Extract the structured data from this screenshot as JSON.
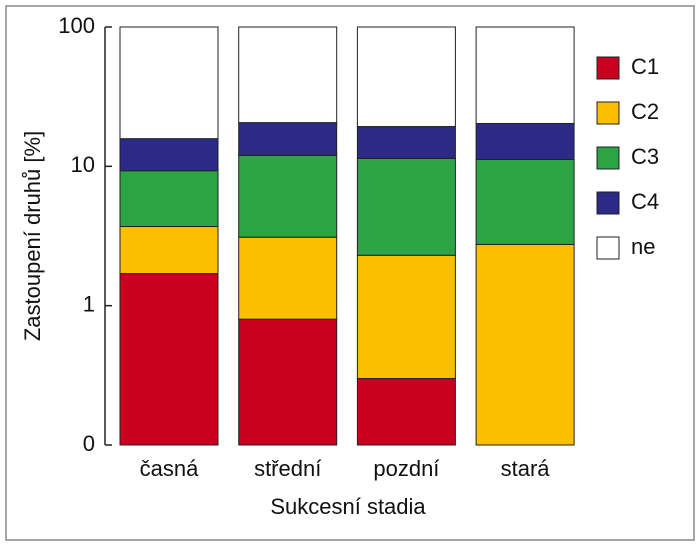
{
  "chart_data": {
    "type": "bar",
    "stacked": true,
    "log_scale": true,
    "xlabel": "Sukcesní stadia",
    "ylabel": "Zastoupení druhů [%]",
    "categories": [
      "časná",
      "střední",
      "pozdní",
      "stará"
    ],
    "series": [
      {
        "name": "C1",
        "color": "#c8001e",
        "values": [
          1.7,
          0.8,
          0.3,
          0
        ]
      },
      {
        "name": "C2",
        "color": "#fbbf00",
        "values": [
          2.0,
          2.3,
          2.0,
          2.75
        ]
      },
      {
        "name": "C3",
        "color": "#2ca344",
        "values": [
          5.6,
          8.9,
          9.1,
          8.45
        ]
      },
      {
        "name": "C4",
        "color": "#2b2a87",
        "values": [
          6.5,
          8.6,
          7.9,
          9.1
        ]
      },
      {
        "name": "ne",
        "color": "#ffffff",
        "values": [
          84.2,
          79.4,
          80.7,
          79.7
        ]
      }
    ],
    "ylim": [
      0.1,
      100
    ],
    "yticks": [
      {
        "value": 0.1,
        "label": "0"
      },
      1,
      10,
      100
    ],
    "legend": "right"
  }
}
